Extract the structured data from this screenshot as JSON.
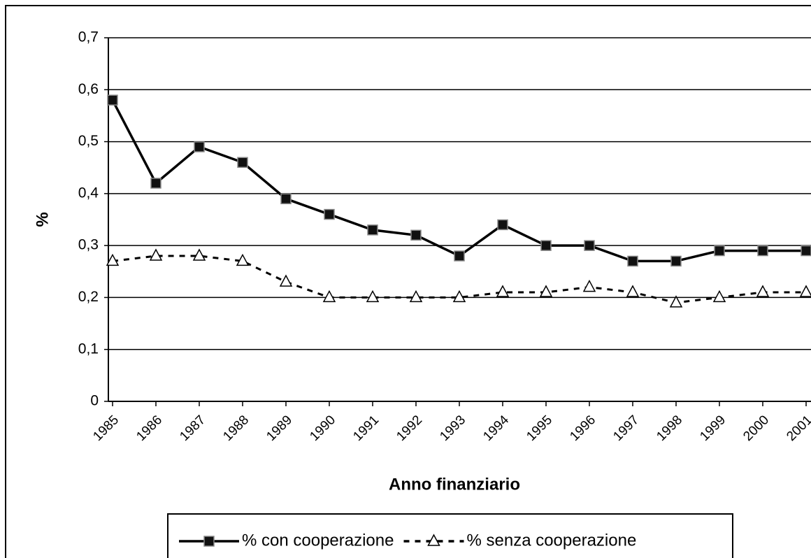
{
  "chart_data": {
    "type": "line",
    "x_label": "Anno finanziario",
    "y_label": "%",
    "categories": [
      "1985",
      "1986",
      "1987",
      "1988",
      "1989",
      "1990",
      "1991",
      "1992",
      "1993",
      "1994",
      "1995",
      "1996",
      "1997",
      "1998",
      "1999",
      "2000",
      "2001"
    ],
    "series": [
      {
        "name": "% con cooperazione",
        "color": "#000000",
        "dash": false,
        "marker": "square",
        "values": [
          0.58,
          0.42,
          0.49,
          0.46,
          0.39,
          0.36,
          0.33,
          0.32,
          0.28,
          0.34,
          0.3,
          0.3,
          0.27,
          0.27,
          0.29,
          0.29,
          0.29
        ]
      },
      {
        "name": "% senza cooperazione",
        "color": "#000000",
        "dash": true,
        "marker": "triangle",
        "values": [
          0.27,
          0.28,
          0.28,
          0.27,
          0.23,
          0.2,
          0.2,
          0.2,
          0.2,
          0.21,
          0.21,
          0.22,
          0.21,
          0.19,
          0.2,
          0.21,
          0.21
        ]
      }
    ],
    "ylim": [
      0,
      0.7
    ],
    "yticks": [
      0,
      {
        "value": 0.1,
        "label": "0,1"
      },
      {
        "value": 0.2,
        "label": "0,2"
      },
      {
        "value": 0.3,
        "label": "0,3"
      },
      {
        "value": 0.4,
        "label": "0,4"
      },
      {
        "value": 0.5,
        "label": "0,5"
      },
      {
        "value": 0.6,
        "label": "0,6"
      },
      {
        "value": 0.7,
        "label": "0,7"
      }
    ],
    "grid": true,
    "legend": "bottom"
  }
}
